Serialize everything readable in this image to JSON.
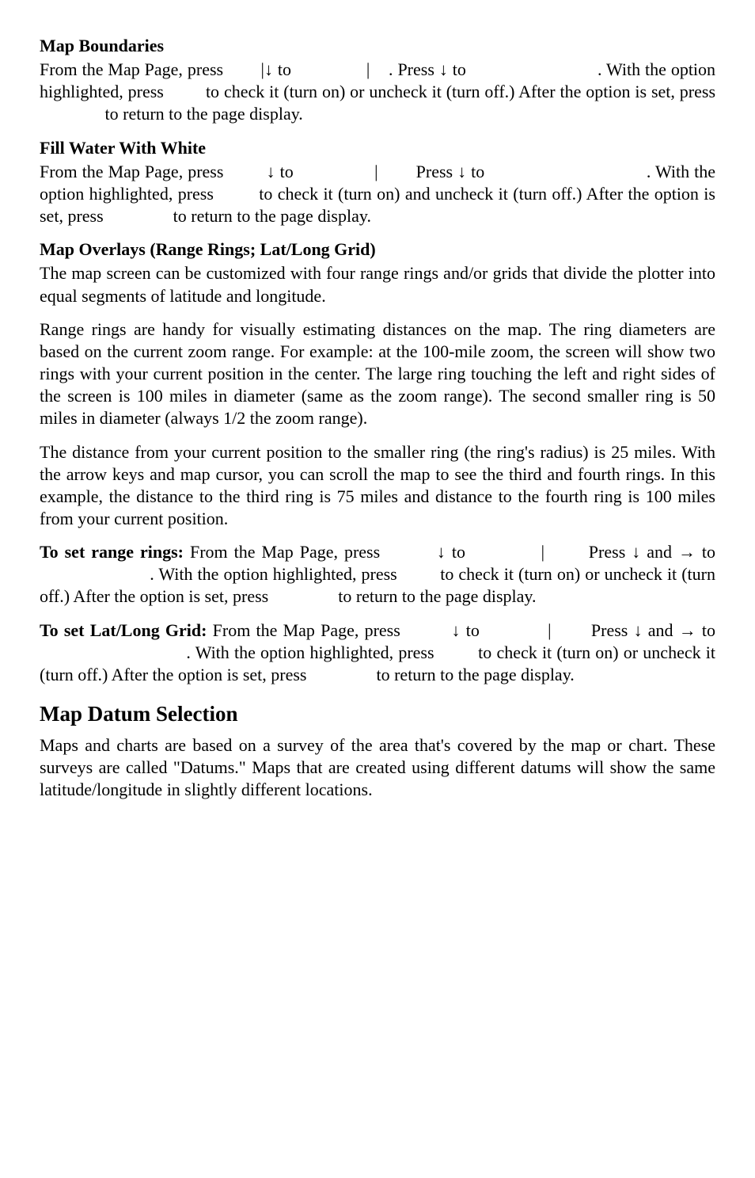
{
  "sections": {
    "mapBoundaries": {
      "title": "Map Boundaries",
      "p1_a": "From the Map Page, press ",
      "p1_b": "|",
      "p1_c": " to ",
      "p1_d": "|",
      "p1_e": ". Press ",
      "p1_f": " to ",
      "p1_g": ". With the option highlighted, press ",
      "p1_h": " to check it (turn on) or uncheck it (turn off.) After the option is set, press ",
      "p1_i": " to return to the page display."
    },
    "fillWater": {
      "title": "Fill Water With White",
      "p1_a": "From the Map Page, press ",
      "p1_b": " to ",
      "p1_c": "|",
      "p1_d": " Press ",
      "p1_e": " to ",
      "p1_f": ". With the option highlighted, press ",
      "p1_g": " to check it (turn on) and uncheck it (turn off.) After the option is set, press ",
      "p1_h": " to return to the page display."
    },
    "overlays": {
      "title": "Map Overlays (Range Rings; Lat/Long Grid)",
      "p1": "The map screen can be customized with four range rings and/or grids that divide the plotter into equal segments of latitude and longitude.",
      "p2": "Range rings are handy for visually estimating distances on the map. The ring diameters are based on the current zoom range. For example: at the 100-mile zoom, the screen will show two rings with your current position in the center. The large ring touching the left and right sides of the screen is 100 miles in diameter (same as the zoom range). The second smaller ring is 50 miles in diameter (always 1/2 the zoom range).",
      "p3": "The distance from your current position to the smaller ring (the ring's radius) is 25 miles. With the arrow keys and map cursor, you can scroll the map to see the third and fourth rings. In this example, the distance to the third ring is 75 miles and distance to the fourth ring is 100 miles from your current position.",
      "rr_bold": "To set range rings:",
      "rr_a": " From the Map Page, press ",
      "rr_b": " to ",
      "rr_c": "|",
      "rr_d": " Press ",
      "rr_e": " and ",
      "rr_f": " to ",
      "rr_g": ". With the option highlighted, press ",
      "rr_h": " to check it (turn on) or uncheck it (turn off.) After the option is set, press ",
      "rr_i": " to return to the page display.",
      "ll_bold": "To set Lat/Long Grid:",
      "ll_a": " From the Map Page, press ",
      "ll_b": " to ",
      "ll_c": "|",
      "ll_d": " Press ",
      "ll_e": " and ",
      "ll_f": " to ",
      "ll_g": ". With the option highlighted, press ",
      "ll_h": " to check it (turn on) or uncheck it (turn off.) After the option is set, press ",
      "ll_i": " to return to the page display."
    },
    "datum": {
      "title": "Map Datum Selection",
      "p1": "Maps and charts are based on a survey of the area that's covered by the map or chart. These surveys are called \"Datums.\" Maps that are created using different datums will show the same latitude/longitude in slightly different locations."
    }
  },
  "glyphs": {
    "down": "↓",
    "right": "→",
    "pipe": "|"
  }
}
